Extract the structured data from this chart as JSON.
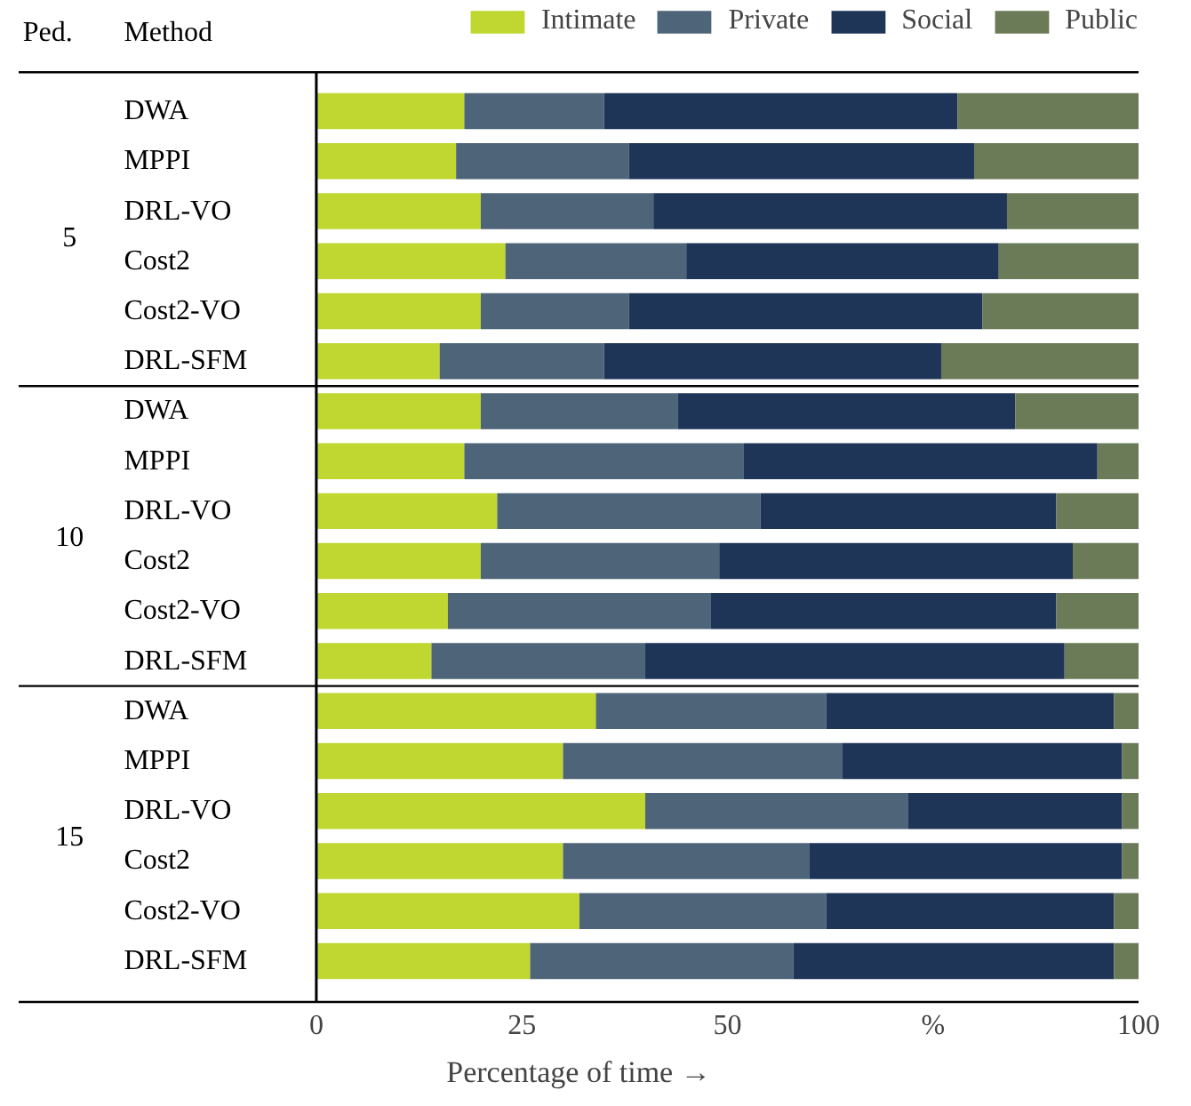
{
  "chart_data": {
    "type": "bar",
    "orientation": "horizontal",
    "stacked": true,
    "xlabel": "Percentage of time →",
    "categories": [
      "DWA",
      "MPPI",
      "DRL-VO",
      "Cost2",
      "Cost2-VO",
      "DRL-SFM",
      "DWA",
      "MPPI",
      "DRL-VO",
      "Cost2",
      "Cost2-VO",
      "DRL-SFM",
      "DWA",
      "MPPI",
      "DRL-VO",
      "Cost2",
      "Cost2-VO",
      "DRL-SFM"
    ],
    "series": [
      {
        "name": "Intimate",
        "color": "#bfd730",
        "values": [
          18,
          17,
          20,
          23,
          20,
          15,
          20,
          18,
          22,
          20,
          16,
          14,
          34,
          30,
          40,
          30,
          32,
          26
        ]
      },
      {
        "name": "Private",
        "color": "#4e6478",
        "values": [
          17,
          21,
          21,
          22,
          18,
          20,
          24,
          34,
          32,
          29,
          32,
          26,
          28,
          34,
          32,
          30,
          30,
          32
        ]
      },
      {
        "name": "Social",
        "color": "#1f3558",
        "values": [
          43,
          42,
          43,
          38,
          43,
          41,
          41,
          43,
          36,
          43,
          42,
          51,
          35,
          34,
          26,
          38,
          35,
          39
        ]
      },
      {
        "name": "Public",
        "color": "#6b7b58",
        "values": [
          22,
          20,
          16,
          17,
          19,
          24,
          15,
          5,
          10,
          8,
          10,
          9,
          3,
          2,
          2,
          2,
          3,
          3
        ]
      }
    ],
    "xlim": [
      0,
      100
    ],
    "xticks": [
      0,
      25,
      50,
      {
        "value": 75,
        "label": "%"
      },
      100
    ],
    "annotations": [
      "Ped.",
      "Method",
      "5",
      "10",
      "15"
    ],
    "grid": false,
    "legend": "top right"
  }
}
